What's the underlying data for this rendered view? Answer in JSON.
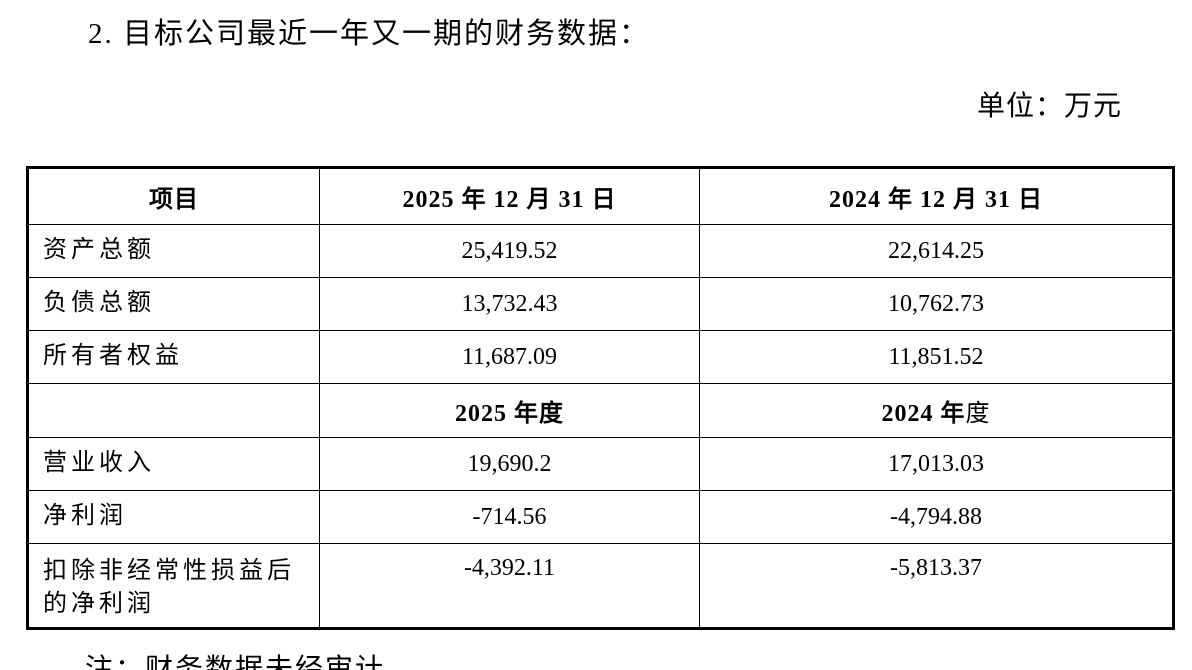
{
  "page": {
    "title": "2. 目标公司最近一年又一期的财务数据：",
    "unit_label": "单位：万元",
    "note": "注：财务数据未经审计。"
  },
  "table": {
    "columns": {
      "item": "项目",
      "date_2025": "2025 年 12 月 31 日",
      "date_2024": "2024 年 12 月 31 日"
    },
    "balance_rows": [
      {
        "label": "资产总额",
        "v2025": "25,419.52",
        "v2024": "22,614.25"
      },
      {
        "label": "负债总额",
        "v2025": "13,732.43",
        "v2024": "10,762.73"
      },
      {
        "label": "所有者权益",
        "v2025": "11,687.09",
        "v2024": "11,851.52"
      }
    ],
    "period_header": {
      "label_2025": "2025 年度",
      "label_2024_bold": "2024 年",
      "label_2024_light": "度"
    },
    "income_rows": [
      {
        "label": "营业收入",
        "v2025": "19,690.2",
        "v2024": "17,013.03"
      },
      {
        "label": "净利润",
        "v2025": "-714.56",
        "v2024": "-4,794.88"
      },
      {
        "label": "扣除非经常性损益后的净利润",
        "v2025": "-4,392.11",
        "v2024": "-5,813.37"
      }
    ]
  }
}
